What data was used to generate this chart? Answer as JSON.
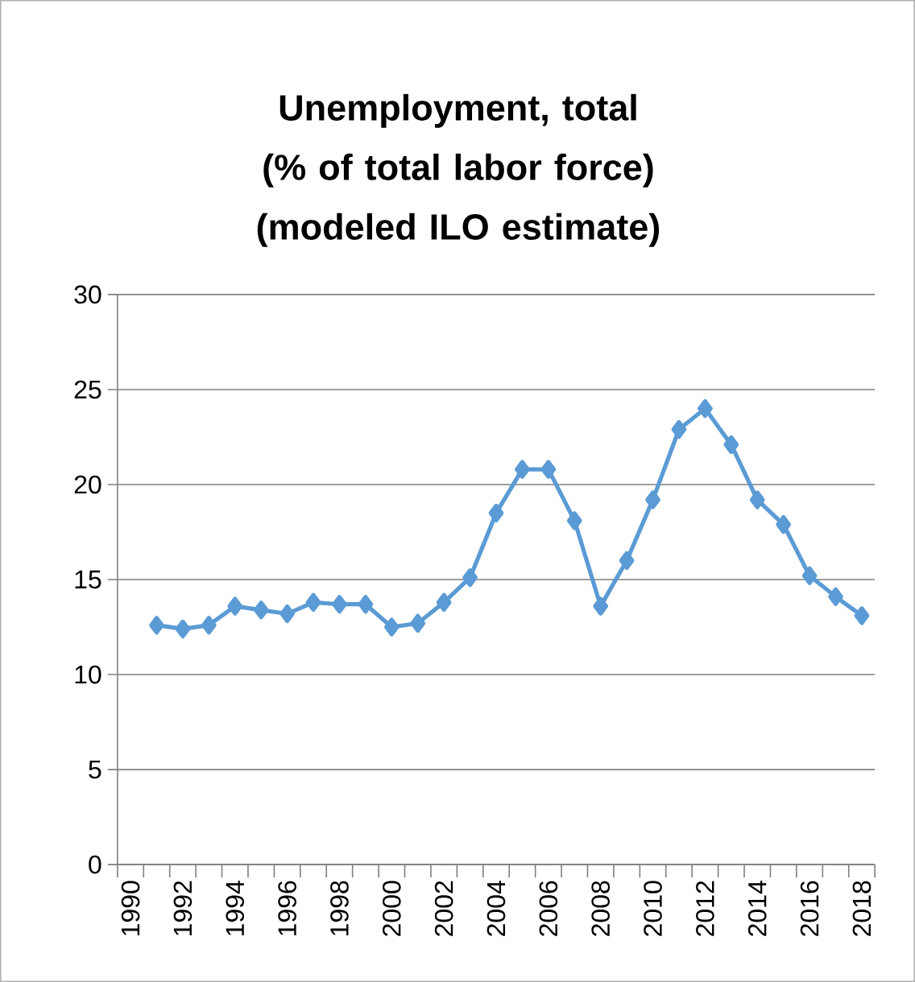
{
  "chart_data": {
    "type": "line",
    "title": "Unemployment, total (% of total labor force) (modeled ILO estimate)",
    "categories": [
      "1990",
      null,
      "1992",
      null,
      "1994",
      null,
      "1996",
      null,
      "1998",
      null,
      "2000",
      null,
      "2002",
      null,
      "2004",
      null,
      "2006",
      null,
      "2008",
      null,
      "2010",
      null,
      "2012",
      null,
      "2014",
      null,
      "2016",
      null,
      "2018"
    ],
    "series": [
      {
        "color": "#5b9bd5",
        "values": [
          null,
          12.6,
          12.4,
          12.6,
          13.6,
          13.4,
          13.2,
          13.8,
          13.7,
          13.7,
          12.5,
          12.7,
          13.8,
          15.1,
          18.5,
          20.8,
          20.8,
          18.1,
          13.6,
          16.0,
          19.2,
          22.9,
          24.0,
          22.1,
          19.2,
          17.9,
          15.2,
          14.1,
          13.1
        ]
      }
    ],
    "ylim": [
      0,
      30
    ],
    "yticks": [
      0,
      5,
      10,
      15,
      20,
      25,
      30
    ],
    "grid": "y",
    "marker": "diamond",
    "line_style": "solid"
  }
}
